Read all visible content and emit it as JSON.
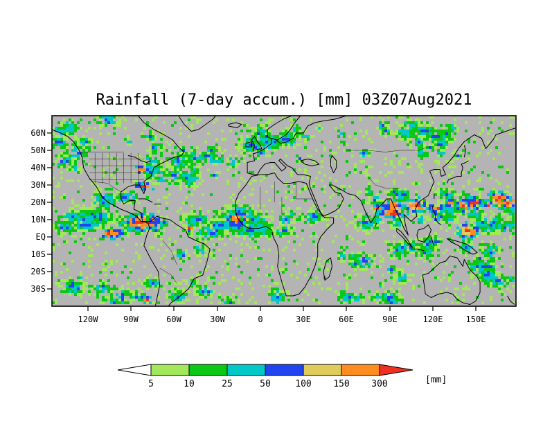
{
  "title": "Rainfall (7-day accum.) [mm] 03Z07Aug2021",
  "map": {
    "background": "#b4b4b4",
    "lat_labels": [
      "60N",
      "50N",
      "40N",
      "30N",
      "20N",
      "10N",
      "EQ",
      "10S",
      "20S",
      "30S"
    ],
    "lon_labels": [
      "120W",
      "90W",
      "60W",
      "30W",
      "0",
      "30E",
      "60E",
      "90E",
      "120E",
      "150E"
    ]
  },
  "colorbar": {
    "ticks": [
      "5",
      "10",
      "25",
      "50",
      "100",
      "150",
      "300"
    ],
    "unit": "[mm]",
    "colors": {
      "under": "#ffffff",
      "c5": "#a2e85a",
      "c10": "#0ac814",
      "c25": "#00c8c8",
      "c50": "#2244f0",
      "c100": "#e0cc5a",
      "c150": "#ff8c1e",
      "over": "#f03020"
    }
  },
  "rainfall": {
    "speckle_count": 1500,
    "bands": [
      {
        "name": "east-pacific-itcz",
        "lat": [
          3,
          13
        ],
        "lon": [
          -145,
          -80
        ],
        "density": 1.2,
        "heavy": 0.22
      },
      {
        "name": "atlantic-itcz",
        "lat": [
          3,
          12
        ],
        "lon": [
          -62,
          10
        ],
        "density": 1.1,
        "heavy": 0.18
      },
      {
        "name": "west-africa-sahel",
        "lat": [
          4,
          15
        ],
        "lon": [
          -17,
          40
        ],
        "density": 0.8,
        "heavy": 0.06
      },
      {
        "name": "indian-monsoon",
        "lat": [
          8,
          27
        ],
        "lon": [
          68,
          100
        ],
        "density": 1.2,
        "heavy": 0.3
      },
      {
        "name": "southeast-asia-monsoon",
        "lat": [
          8,
          26
        ],
        "lon": [
          100,
          135
        ],
        "density": 1.2,
        "heavy": 0.3
      },
      {
        "name": "west-pacific-typhoon",
        "lat": [
          6,
          26
        ],
        "lon": [
          135,
          178
        ],
        "density": 1.1,
        "heavy": 0.28
      },
      {
        "name": "bay-of-bengal-core",
        "lat": [
          14,
          23
        ],
        "lon": [
          85,
          95
        ],
        "density": 2.0,
        "heavy": 0.55
      },
      {
        "name": "north-atlantic-storm-track",
        "lat": [
          34,
          60
        ],
        "lon": [
          -80,
          -30
        ],
        "density": 0.6,
        "heavy": 0.05
      },
      {
        "name": "europe",
        "lat": [
          44,
          66
        ],
        "lon": [
          -30,
          55
        ],
        "density": 0.55,
        "heavy": 0.02
      },
      {
        "name": "siberia",
        "lat": [
          45,
          66
        ],
        "lon": [
          55,
          145
        ],
        "density": 0.6,
        "heavy": 0.02
      },
      {
        "name": "northeast-pacific",
        "lat": [
          40,
          60
        ],
        "lon": [
          -145,
          -124
        ],
        "density": 0.55,
        "heavy": 0.03
      },
      {
        "name": "us-east-coast",
        "lat": [
          28,
          40
        ],
        "lon": [
          -95,
          -70
        ],
        "density": 0.7,
        "heavy": 0.14
      },
      {
        "name": "mexico-central-america",
        "lat": [
          12,
          24
        ],
        "lon": [
          -112,
          -88
        ],
        "density": 0.7,
        "heavy": 0.1
      },
      {
        "name": "colombia-venezuela",
        "lat": [
          4,
          12
        ],
        "lon": [
          -80,
          -62
        ],
        "density": 0.8,
        "heavy": 0.1
      },
      {
        "name": "maritime-continent",
        "lat": [
          -10,
          6
        ],
        "lon": [
          95,
          150
        ],
        "density": 0.7,
        "heavy": 0.06
      },
      {
        "name": "south-pacific-convergence",
        "lat": [
          -28,
          -6
        ],
        "lon": [
          148,
          178
        ],
        "density": 0.6,
        "heavy": 0.05
      },
      {
        "name": "south-indian-ocean",
        "lat": [
          -36,
          -8
        ],
        "lon": [
          45,
          105
        ],
        "density": 0.45,
        "heavy": 0.02
      },
      {
        "name": "south-pacific-midlat",
        "lat": [
          -40,
          -22
        ],
        "lon": [
          -142,
          -70
        ],
        "density": 0.5,
        "heavy": 0.04
      },
      {
        "name": "south-atlantic",
        "lat": [
          -40,
          -25
        ],
        "lon": [
          -60,
          15
        ],
        "density": 0.45,
        "heavy": 0.02
      },
      {
        "name": "brazil",
        "lat": [
          -24,
          -6
        ],
        "lon": [
          -65,
          -38
        ],
        "density": 0.3,
        "heavy": 0
      },
      {
        "name": "canada-arctic",
        "lat": [
          56,
          69
        ],
        "lon": [
          -145,
          -55
        ],
        "density": 0.35,
        "heavy": 0
      }
    ]
  }
}
